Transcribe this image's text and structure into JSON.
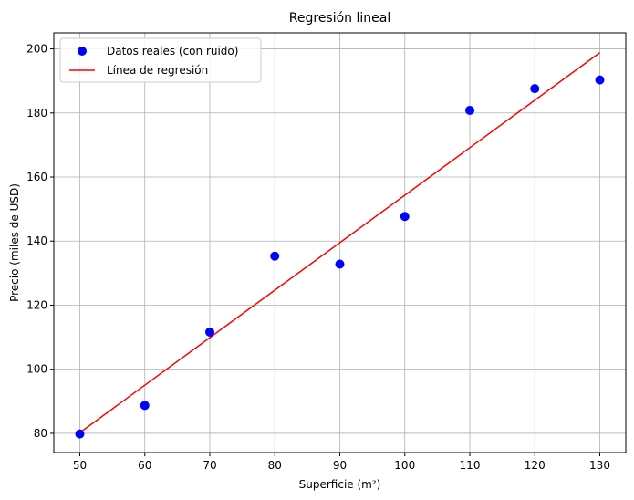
{
  "chart_data": {
    "type": "scatter",
    "title": "Regresión lineal",
    "xlabel": "Superficie (m²)",
    "ylabel": "Precio (miles de USD)",
    "xlim": [
      46,
      134
    ],
    "ylim": [
      74,
      205
    ],
    "xticks": [
      50,
      60,
      70,
      80,
      90,
      100,
      110,
      120,
      130
    ],
    "yticks": [
      80,
      100,
      120,
      140,
      160,
      180,
      200
    ],
    "grid": true,
    "legend_position": "top-left",
    "series": [
      {
        "name": "Datos reales (con ruido)",
        "kind": "scatter",
        "color": "#0000ff",
        "x": [
          50,
          60,
          70,
          80,
          90,
          100,
          110,
          120,
          130
        ],
        "y": [
          79.8,
          88.7,
          111.6,
          135.3,
          132.8,
          147.7,
          180.8,
          187.6,
          190.3
        ]
      },
      {
        "name": "Línea de regresión",
        "kind": "line",
        "color": "#ff0000",
        "x": [
          50,
          130
        ],
        "y": [
          80.2,
          198.8
        ]
      }
    ]
  }
}
